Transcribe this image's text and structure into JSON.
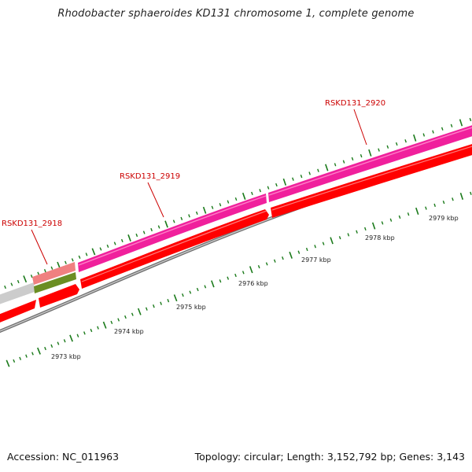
{
  "title": "Rhodobacter sphaeroides KD131 chromosome 1, complete genome",
  "footer": {
    "accession": "Accession: NC_011963",
    "summary": "Topology: circular; Length: 3,152,792 bp; Genes: 3,143"
  },
  "genes": [
    {
      "label": "RSKD131_2918",
      "color": "#cc0000"
    },
    {
      "label": "RSKD131_2919",
      "color": "#cc0000"
    },
    {
      "label": "RSKD131_2920",
      "color": "#cc0000"
    }
  ],
  "ruler": {
    "unit": "kbp",
    "labels": [
      "2973 kbp",
      "2974 kbp",
      "2975 kbp",
      "2976 kbp",
      "2977 kbp",
      "2978 kbp",
      "2979 kbp"
    ]
  },
  "colors": {
    "cds": "#ff0000",
    "gene_pink": "#f0209c",
    "gene_salmon": "#f08080",
    "gene_olive": "#6b8e23",
    "gene_gray": "#cccccc",
    "backbone": "#808080",
    "tick": "#1a7a1a"
  }
}
